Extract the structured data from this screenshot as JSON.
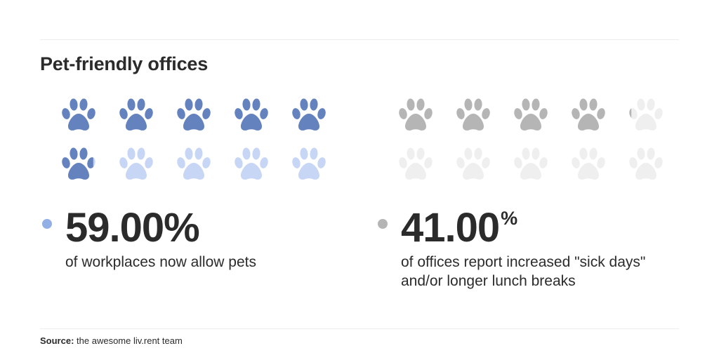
{
  "title": "Pet-friendly offices",
  "source": {
    "label": "Source:",
    "text": "the awesome liv.rent team"
  },
  "colors": {
    "blue_filled": "#6482bd",
    "blue_empty": "#c7d6f5",
    "gray_filled": "#b5b5b5",
    "gray_empty": "#efefef",
    "blue_dot": "#93b0e6",
    "gray_dot": "#b5b5b5"
  },
  "icons": {
    "pictogram": "paw-icon",
    "bullet": "dot-icon"
  },
  "chart_data": {
    "type": "pictogram",
    "title": "Pet-friendly offices",
    "units_per_grid": 10,
    "series": [
      {
        "value": 59.0,
        "filled_units": 5.9,
        "value_text": "59.00",
        "percent_sign": "%",
        "description": "of workplaces now allow pets",
        "filled_color": "#6482bd",
        "empty_color": "#c7d6f5",
        "dot_color": "#93b0e6"
      },
      {
        "value": 41.0,
        "filled_units": 4.1,
        "value_text": "41.00",
        "percent_sign": "%",
        "description": "of offices report increased \"sick days\" and/or longer lunch breaks",
        "filled_color": "#b5b5b5",
        "empty_color": "#efefef",
        "dot_color": "#b5b5b5"
      }
    ]
  }
}
